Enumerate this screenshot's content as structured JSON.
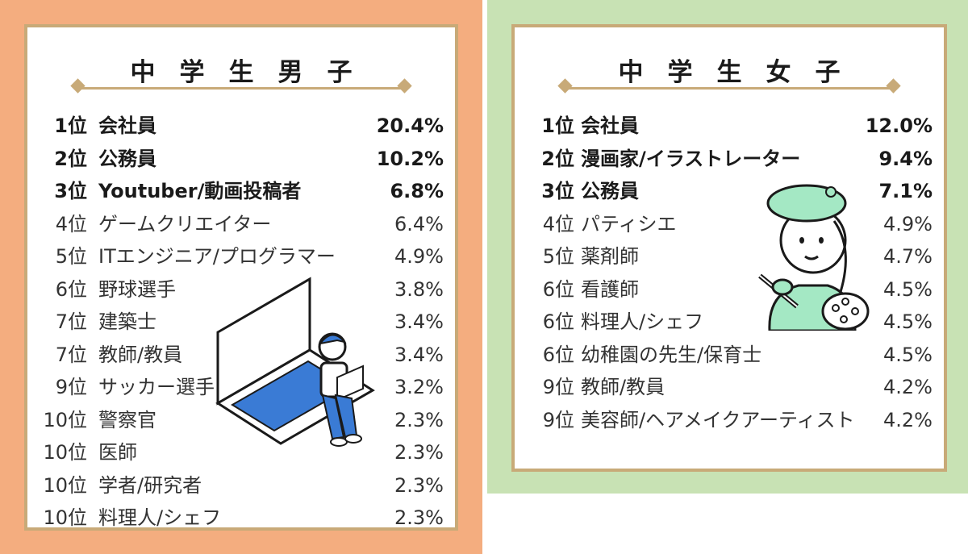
{
  "colors": {
    "boys_frame": "#f4ad7f",
    "girls_frame": "#c8e2b4",
    "card_border": "#c8aa78",
    "laptop_screen": "#3a7bd5",
    "girl_shirt": "#a4e8c4"
  },
  "boys": {
    "title": "中学生男子",
    "rankings": [
      {
        "rank": "1位",
        "job": "会社員",
        "percent": "20.4%"
      },
      {
        "rank": "2位",
        "job": "公務員",
        "percent": "10.2%"
      },
      {
        "rank": "3位",
        "job": "Youtuber/動画投稿者",
        "percent": "6.8%"
      },
      {
        "rank": "4位",
        "job": "ゲームクリエイター",
        "percent": "6.4%"
      },
      {
        "rank": "5位",
        "job": "ITエンジニア/プログラマー",
        "percent": "4.9%"
      },
      {
        "rank": "6位",
        "job": "野球選手",
        "percent": "3.8%"
      },
      {
        "rank": "7位",
        "job": "建築士",
        "percent": "3.4%"
      },
      {
        "rank": "7位",
        "job": "教師/教員",
        "percent": "3.4%"
      },
      {
        "rank": "9位",
        "job": "サッカー選手",
        "percent": "3.2%"
      },
      {
        "rank": "10位",
        "job": "警察官",
        "percent": "2.3%"
      },
      {
        "rank": "10位",
        "job": "医師",
        "percent": "2.3%"
      },
      {
        "rank": "10位",
        "job": "学者/研究者",
        "percent": "2.3%"
      },
      {
        "rank": "10位",
        "job": "料理人/シェフ",
        "percent": "2.3%"
      }
    ]
  },
  "girls": {
    "title": "中学生女子",
    "rankings": [
      {
        "rank": "1位",
        "job": "会社員",
        "percent": "12.0%"
      },
      {
        "rank": "2位",
        "job": "漫画家/イラストレーター",
        "percent": "9.4%"
      },
      {
        "rank": "3位",
        "job": "公務員",
        "percent": "7.1%"
      },
      {
        "rank": "4位",
        "job": "パティシエ",
        "percent": "4.9%"
      },
      {
        "rank": "5位",
        "job": "薬剤師",
        "percent": "4.7%"
      },
      {
        "rank": "6位",
        "job": "看護師",
        "percent": "4.5%"
      },
      {
        "rank": "6位",
        "job": "料理人/シェフ",
        "percent": "4.5%"
      },
      {
        "rank": "6位",
        "job": "幼稚園の先生/保育士",
        "percent": "4.5%"
      },
      {
        "rank": "9位",
        "job": "教師/教員",
        "percent": "4.2%"
      },
      {
        "rank": "9位",
        "job": "美容師/ヘアメイクアーティスト",
        "percent": "4.2%"
      }
    ]
  }
}
